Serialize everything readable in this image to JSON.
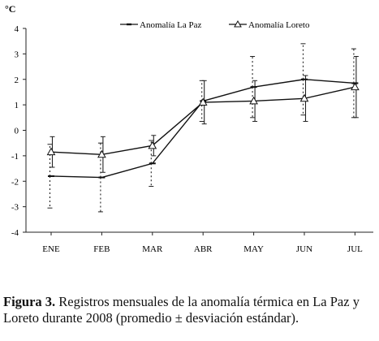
{
  "chart_data": {
    "type": "line",
    "unit_label": "°C",
    "categories": [
      "ENE",
      "FEB",
      "MAR",
      "ABR",
      "MAY",
      "JUN",
      "JUL"
    ],
    "ylim": [
      -4,
      4
    ],
    "yticks": [
      -4,
      -3,
      -2,
      -1,
      0,
      1,
      2,
      3,
      4
    ],
    "grid": false,
    "legend_position": "top",
    "series": [
      {
        "name": "Anomalía La Paz",
        "marker": "dash",
        "values": [
          -1.8,
          -1.85,
          -1.3,
          1.15,
          1.7,
          2.0,
          1.85
        ],
        "error": [
          1.25,
          1.35,
          0.9,
          0.8,
          1.2,
          1.4,
          1.35
        ]
      },
      {
        "name": "Anomalía Loreto",
        "marker": "triangle",
        "values": [
          -0.85,
          -0.95,
          -0.6,
          1.1,
          1.15,
          1.25,
          1.7
        ],
        "error": [
          0.6,
          0.7,
          0.4,
          0.85,
          0.8,
          0.9,
          1.2
        ]
      }
    ]
  },
  "caption": {
    "lead": "Figura 3.",
    "text": " Registros mensuales de la anomalía térmica en La Paz y Loreto durante 2008 (promedio ± desviación estándar)."
  }
}
